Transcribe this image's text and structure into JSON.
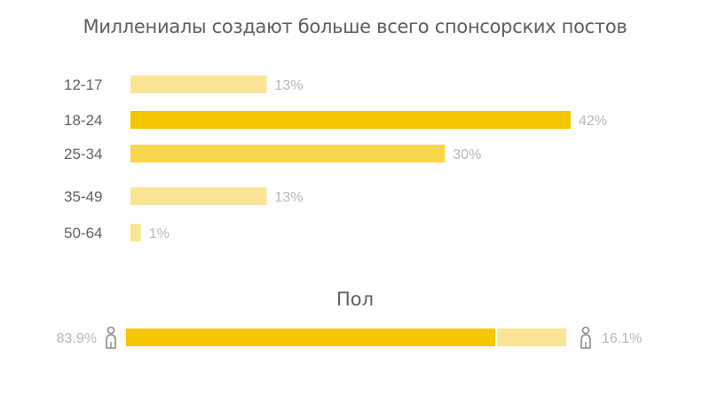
{
  "colors": {
    "strong": "#f6c600",
    "medium": "#f8d64b",
    "light": "#fae597",
    "label": "#5f6168",
    "value": "#b8b8b8",
    "icon": "#8a8a8a"
  },
  "chart_data": [
    {
      "type": "bar",
      "orientation": "horizontal",
      "title": "Миллениалы создают больше всего спонсорских постов",
      "categories": [
        "12-17",
        "18-24",
        "25-34",
        "35-49",
        "50-64"
      ],
      "values": [
        13,
        42,
        30,
        13,
        1
      ],
      "value_labels": [
        "13%",
        "42%",
        "30%",
        "13%",
        "1%"
      ],
      "xlim": [
        0,
        42
      ],
      "grid": false
    },
    {
      "type": "bar",
      "orientation": "horizontal",
      "stacked": true,
      "title": "Пол",
      "series": [
        {
          "icon": "person-icon",
          "value": 83.9,
          "label": "83.9%"
        },
        {
          "icon": "person-icon",
          "value": 16.1,
          "label": "16.1%"
        }
      ],
      "xlim": [
        0,
        100
      ],
      "grid": false
    }
  ]
}
